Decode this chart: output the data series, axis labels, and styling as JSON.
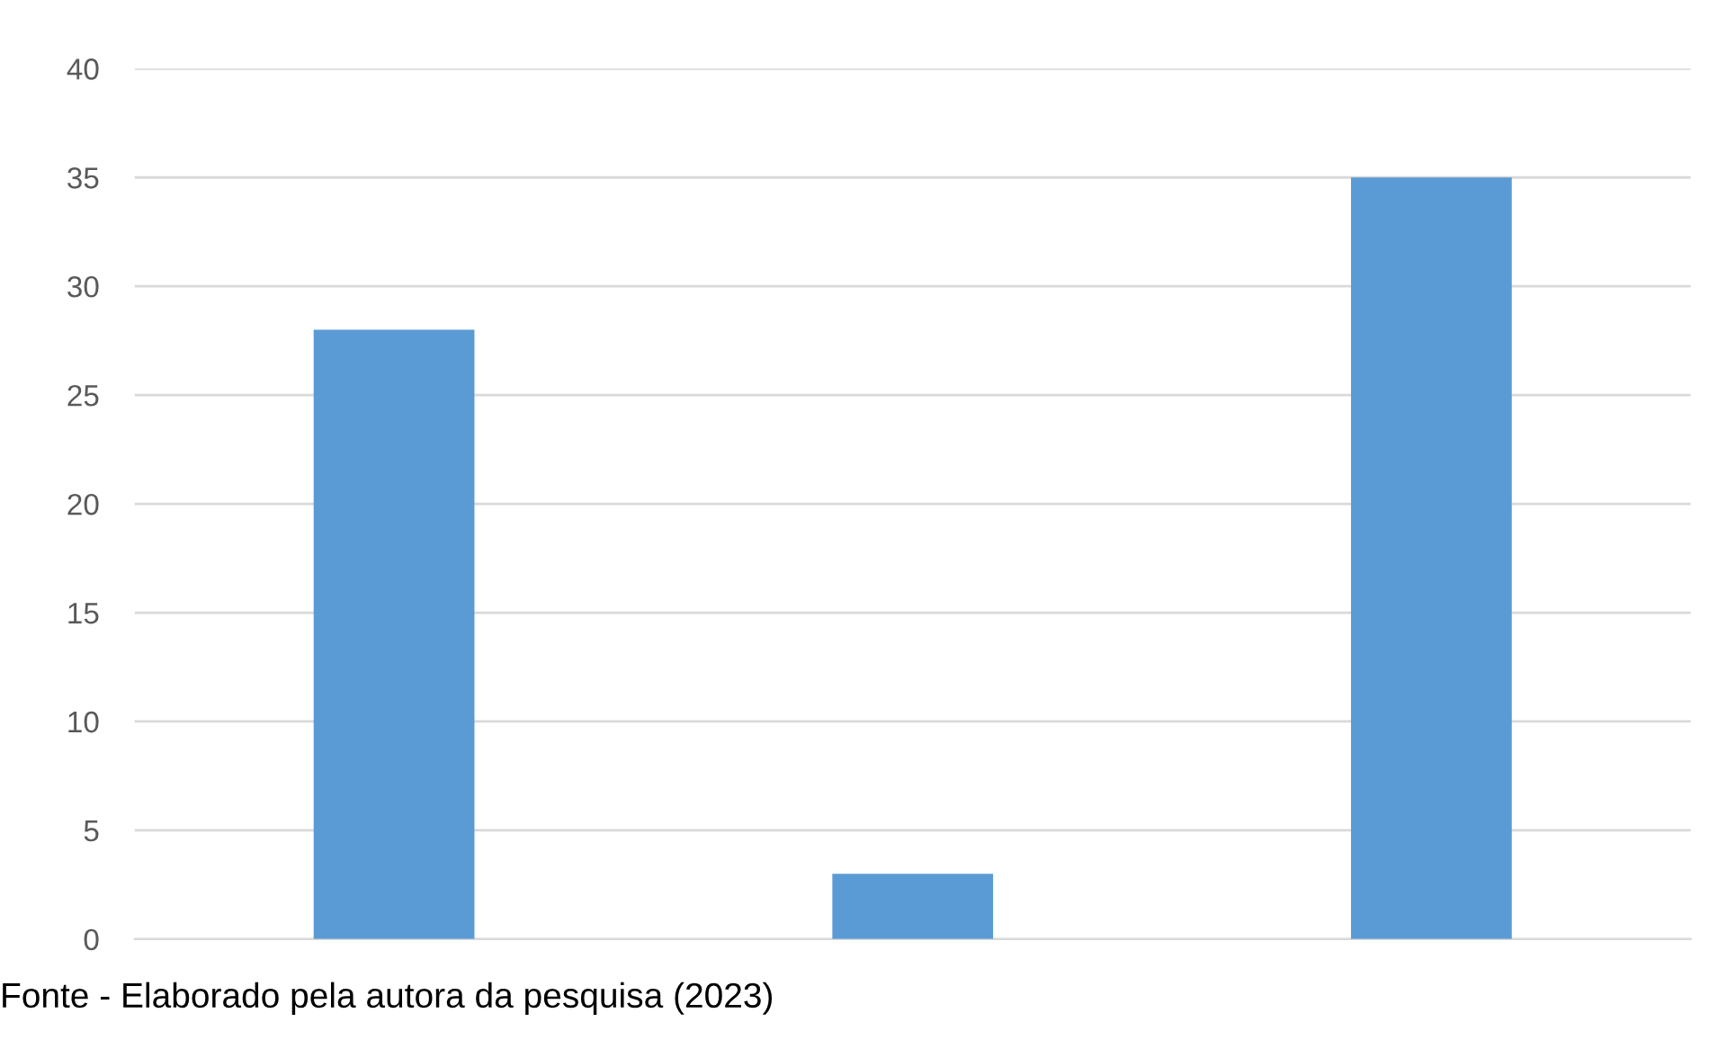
{
  "chart_data": {
    "type": "bar",
    "categories": [
      null,
      null,
      null
    ],
    "values": [
      28,
      3,
      35
    ],
    "color": "#5b9bd5",
    "ylim": [
      0,
      40
    ],
    "yticks": [
      0,
      5,
      10,
      15,
      20,
      25,
      30,
      35,
      40
    ],
    "grid": "y",
    "annotations": [
      "Fonte - Elaborado pela autora da pesquisa (2023)"
    ]
  }
}
